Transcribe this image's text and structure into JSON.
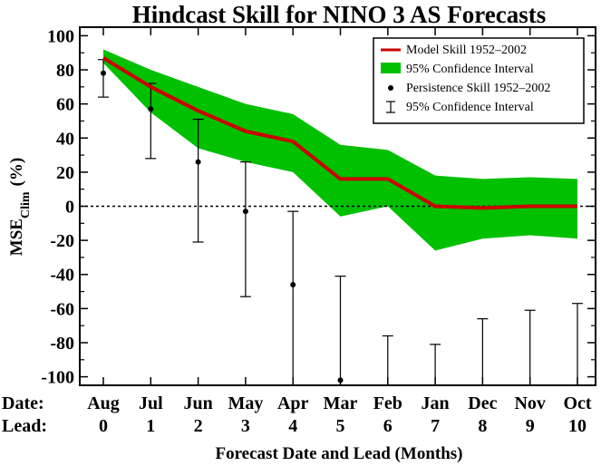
{
  "chart_data": {
    "type": "line",
    "title": "Hindcast Skill for NINO 3 AS Forecasts",
    "xlabel": "Forecast Date and Lead (Months)",
    "ylabel_main": "MSE",
    "ylabel_sub": "Clim",
    "ylabel_unit": "(%)",
    "row_labels": {
      "date": "Date:",
      "lead": "Lead:"
    },
    "dates": [
      "Aug",
      "Jul",
      "Jun",
      "May",
      "Apr",
      "Mar",
      "Feb",
      "Jan",
      "Dec",
      "Nov",
      "Oct"
    ],
    "leads": [
      "0",
      "1",
      "2",
      "3",
      "4",
      "5",
      "6",
      "7",
      "8",
      "9",
      "10"
    ],
    "ylim": [
      -105,
      105
    ],
    "yticks": [
      100,
      80,
      60,
      40,
      20,
      0,
      -20,
      -40,
      -60,
      -80,
      -100
    ],
    "reference_line": 0,
    "legend_position": "top-right",
    "series": [
      {
        "name": "Model Skill 1952–2002",
        "kind": "line",
        "color": "#cc0000",
        "values": [
          87,
          70,
          56,
          44,
          38,
          16,
          16,
          0,
          -1,
          0,
          0
        ]
      },
      {
        "name": "95% Confidence Interval",
        "kind": "band",
        "color": "#00c000",
        "upper": [
          92,
          80,
          70,
          60,
          54,
          36,
          33,
          18,
          16,
          17,
          16
        ],
        "lower": [
          84,
          55,
          34,
          26,
          20,
          -6,
          0,
          -26,
          -19,
          -17,
          -19
        ]
      },
      {
        "name": "Persistence Skill 1952–2002",
        "kind": "points",
        "color": "#000000",
        "values": [
          78,
          57,
          26,
          -3,
          -46,
          -102,
          null,
          null,
          null,
          null,
          null
        ]
      },
      {
        "name": "95% Confidence Interval",
        "kind": "errorbar",
        "color": "#000000",
        "upper": [
          86,
          72,
          51,
          26,
          -3,
          -41,
          -76,
          -81,
          -66,
          -61,
          -57
        ],
        "lower": [
          64,
          28,
          -21,
          -53,
          -105,
          -105,
          -105,
          -105,
          -105,
          -105,
          -105
        ]
      }
    ]
  }
}
